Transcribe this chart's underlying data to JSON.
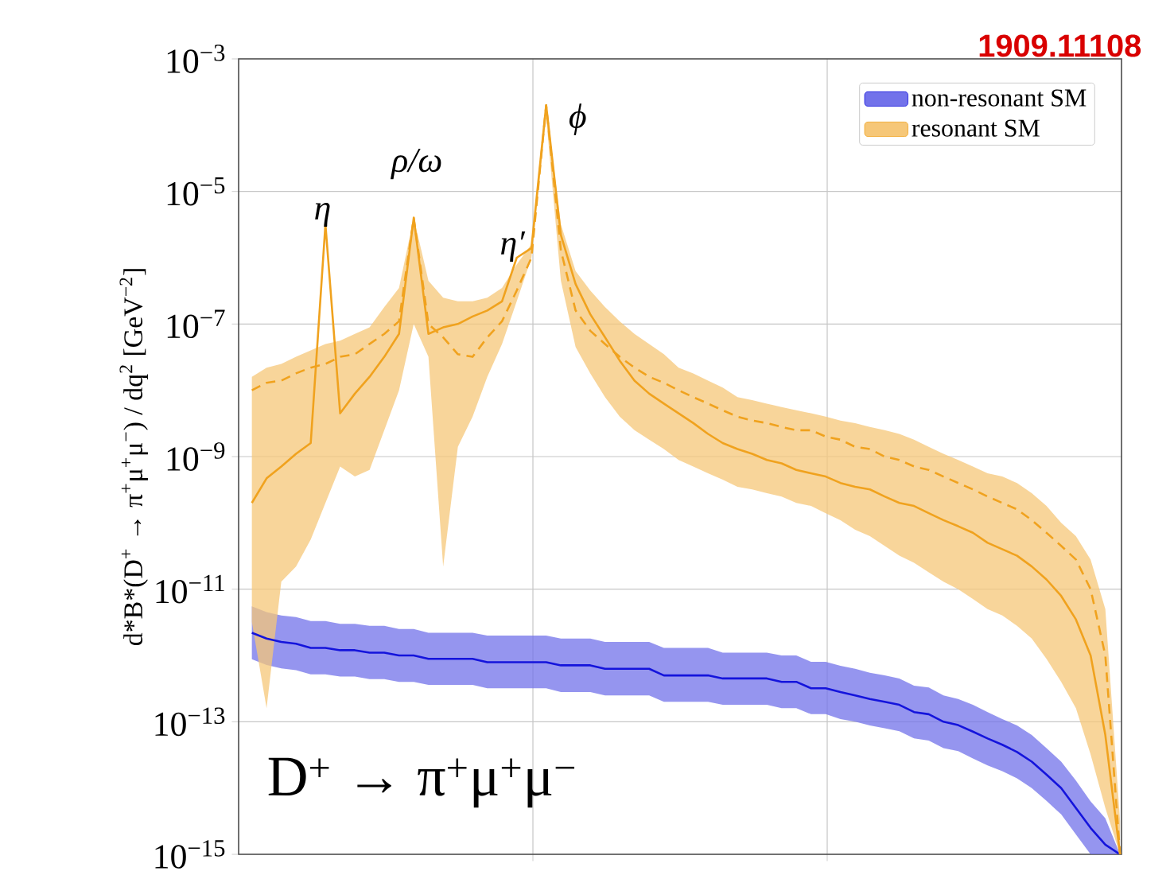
{
  "chart_data": {
    "type": "line",
    "ylabel": "d*B*(D$^{+}$ → π$^{+}$μ$^{+}$μ$^{−}$) / dq$^{2}$ [GeV$^{−2}$]",
    "categories": [
      null,
      null,
      null,
      null,
      null,
      null,
      null,
      null,
      null,
      null,
      null,
      null,
      null,
      null,
      null,
      null,
      null,
      null,
      null,
      null,
      null,
      null,
      null,
      null,
      null,
      null,
      null,
      null,
      null,
      null,
      null,
      null,
      null,
      null,
      null,
      null,
      null,
      null,
      null,
      null,
      null,
      null,
      null,
      null,
      null,
      null,
      null,
      null,
      null,
      null,
      null,
      null,
      null,
      null,
      null,
      null,
      null,
      null,
      null,
      null
    ],
    "ylim": [
      1e-15,
      0.001
    ],
    "yticks": [
      {
        "value": 1e-15,
        "label": "10$^{−15}$"
      },
      {
        "value": 1e-13,
        "label": "10$^{−13}$"
      },
      {
        "value": 1e-11,
        "label": "10$^{−11}$"
      },
      {
        "value": 1e-09,
        "label": "10$^{−9}$"
      },
      {
        "value": 1e-07,
        "label": "10$^{−7}$"
      },
      {
        "value": 1e-05,
        "label": "10$^{−5}$"
      },
      {
        "value": 0.001,
        "label": "10$^{−3}$"
      }
    ],
    "log": "y",
    "grid": true,
    "legend": "top right",
    "tick_labels": "y",
    "series": [
      {
        "name": "non-resonant SM",
        "color": "#1414dc",
        "values": [
          2.2e-12,
          1.8e-12,
          1.6e-12,
          1.5e-12,
          1.3e-12,
          1.3e-12,
          1.2e-12,
          1.2e-12,
          1.1e-12,
          1.1e-12,
          1e-12,
          1e-12,
          8.9e-13,
          8.9e-13,
          8.9e-13,
          8.9e-13,
          7.9e-13,
          7.9e-13,
          7.9e-13,
          7.9e-13,
          7.9e-13,
          7.1e-13,
          7.1e-13,
          7.1e-13,
          6.3e-13,
          6.3e-13,
          6.3e-13,
          6.3e-13,
          5e-13,
          5e-13,
          5e-13,
          5e-13,
          4.5e-13,
          4.5e-13,
          4.5e-13,
          4.5e-13,
          4e-13,
          4e-13,
          3.2e-13,
          3.2e-13,
          2.8e-13,
          2.5e-13,
          2.2e-13,
          2e-13,
          1.8e-13,
          1.4e-13,
          1.3e-13,
          1e-13,
          8.9e-14,
          7.1e-14,
          5.6e-14,
          4.5e-14,
          3.5e-14,
          2.5e-14,
          1.6e-14,
          1e-14,
          5e-15,
          2.5e-15,
          1.4e-15,
          1e-15
        ],
        "upper": [
          5.5e-12,
          4.5e-12,
          4e-12,
          3.8e-12,
          3.3e-12,
          3.3e-12,
          3e-12,
          3e-12,
          2.8e-12,
          2.8e-12,
          2.5e-12,
          2.5e-12,
          2.2e-12,
          2.2e-12,
          2.2e-12,
          2.2e-12,
          2e-12,
          2e-12,
          2e-12,
          2e-12,
          2e-12,
          1.8e-12,
          1.8e-12,
          1.8e-12,
          1.6e-12,
          1.6e-12,
          1.6e-12,
          1.6e-12,
          1.3e-12,
          1.3e-12,
          1.3e-12,
          1.3e-12,
          1.1e-12,
          1.1e-12,
          1.1e-12,
          1.1e-12,
          1e-12,
          1e-12,
          8e-13,
          8e-13,
          7e-13,
          6.3e-13,
          5.5e-13,
          5e-13,
          4.5e-13,
          3.5e-13,
          3.3e-13,
          2.5e-13,
          2.2e-13,
          1.8e-13,
          1.4e-13,
          1.1e-13,
          8.8e-14,
          6.3e-14,
          4e-14,
          2.5e-14,
          1.3e-14,
          6.3e-15,
          3.5e-15,
          1e-15
        ],
        "lower": [
          8.8e-13,
          7.2e-13,
          6.4e-13,
          6e-13,
          5.2e-13,
          5.2e-13,
          4.8e-13,
          4.8e-13,
          4.4e-13,
          4.4e-13,
          4e-13,
          4e-13,
          3.6e-13,
          3.6e-13,
          3.6e-13,
          3.6e-13,
          3.2e-13,
          3.2e-13,
          3.2e-13,
          3.2e-13,
          3.2e-13,
          2.8e-13,
          2.8e-13,
          2.8e-13,
          2.5e-13,
          2.5e-13,
          2.5e-13,
          2.5e-13,
          2e-13,
          2e-13,
          2e-13,
          2e-13,
          1.8e-13,
          1.8e-13,
          1.8e-13,
          1.8e-13,
          1.6e-13,
          1.6e-13,
          1.3e-13,
          1.3e-13,
          1.1e-13,
          1e-13,
          8.8e-14,
          8e-14,
          7.2e-14,
          5.6e-14,
          5.2e-14,
          4e-14,
          3.6e-14,
          2.8e-14,
          2.2e-14,
          1.8e-14,
          1.4e-14,
          1e-14,
          6.4e-15,
          4e-15,
          2e-15,
          1e-15,
          1e-15,
          1e-15
        ]
      },
      {
        "name": "resonant SM",
        "color": "#f0a21e",
        "values": [
          2e-10,
          4.7e-10,
          7.1e-10,
          1.1e-09,
          1.6e-09,
          3.2e-06,
          4.5e-09,
          8.9e-09,
          1.6e-08,
          3.2e-08,
          7.1e-08,
          4e-06,
          7.1e-08,
          8.9e-08,
          1e-07,
          1.3e-07,
          1.6e-07,
          2.2e-07,
          1e-06,
          1.4e-06,
          0.0002,
          2.2e-06,
          4e-07,
          1.4e-07,
          6.3e-08,
          2.8e-08,
          1.4e-08,
          8.9e-09,
          6.3e-09,
          4.5e-09,
          3.2e-09,
          2.2e-09,
          1.6e-09,
          1.3e-09,
          1.1e-09,
          8.9e-10,
          7.9e-10,
          6.3e-10,
          5.6e-10,
          5e-10,
          4e-10,
          3.5e-10,
          3.2e-10,
          2.5e-10,
          2e-10,
          1.8e-10,
          1.4e-10,
          1.1e-10,
          8.9e-11,
          7.1e-11,
          5e-11,
          4e-11,
          3.2e-11,
          2.2e-11,
          1.4e-11,
          7.9e-12,
          3.5e-12,
          1e-12,
          6.3e-14,
          1e-15
        ],
        "upper": [
          1.6e-08,
          2.2e-08,
          2.5e-08,
          3.2e-08,
          4e-08,
          5e-08,
          5.6e-08,
          7.1e-08,
          8.9e-08,
          1.8e-07,
          3.5e-07,
          4e-06,
          4.5e-07,
          2.5e-07,
          2.2e-07,
          2.2e-07,
          2.5e-07,
          3.5e-07,
          7.9e-07,
          1.6e-06,
          0.0002,
          3.2e-06,
          6.3e-07,
          3.2e-07,
          1.8e-07,
          1.1e-07,
          7.1e-08,
          5e-08,
          3.5e-08,
          2.2e-08,
          1.8e-08,
          1.4e-08,
          1.1e-08,
          7.9e-09,
          7.1e-09,
          6.3e-09,
          5.6e-09,
          5e-09,
          4.5e-09,
          4e-09,
          3.5e-09,
          3.2e-09,
          2.8e-09,
          2.5e-09,
          2.2e-09,
          1.8e-09,
          1.4e-09,
          1.1e-09,
          8.9e-10,
          7.1e-10,
          5.6e-10,
          5e-10,
          4e-10,
          2.8e-10,
          1.8e-10,
          1e-10,
          6.3e-11,
          2.8e-11,
          5e-12,
          3.2e-15
        ],
        "lower": [
          3.2e-12,
          1.6e-13,
          1.3e-11,
          2.2e-11,
          5.6e-11,
          2e-10,
          7.1e-10,
          5e-10,
          6.3e-10,
          2.5e-09,
          1e-08,
          1e-07,
          3.2e-08,
          2.2e-11,
          1.4e-09,
          4e-09,
          1.6e-08,
          5e-08,
          2.2e-07,
          1e-06,
          0.00013,
          4.5e-07,
          4.5e-08,
          1.8e-08,
          7.9e-09,
          4e-09,
          2.5e-09,
          1.8e-09,
          1.3e-09,
          8.9e-10,
          7.1e-10,
          5.6e-10,
          4.5e-10,
          3.5e-10,
          3.2e-10,
          2.8e-10,
          2.5e-10,
          2e-10,
          1.8e-10,
          1.4e-10,
          1.1e-10,
          7.9e-11,
          6.3e-11,
          4.5e-11,
          3.2e-11,
          2.5e-11,
          1.8e-11,
          1.3e-11,
          1e-11,
          7.1e-12,
          5e-12,
          4e-12,
          2.8e-12,
          1.8e-12,
          8.9e-13,
          4e-13,
          1.6e-13,
          3.2e-14,
          5e-15,
          1e-15
        ]
      },
      {
        "color": "#f0a21e",
        "line_style": "dashed",
        "values": [
          1e-08,
          1.3e-08,
          1.4e-08,
          1.8e-08,
          2.2e-08,
          2.5e-08,
          3.2e-08,
          3.5e-08,
          5e-08,
          7.1e-08,
          1.1e-07,
          4e-06,
          1e-07,
          6.3e-08,
          3.5e-08,
          3.2e-08,
          6.3e-08,
          1.1e-07,
          3.2e-07,
          1e-06,
          0.0002,
          1.3e-06,
          1.6e-07,
          7.9e-08,
          5e-08,
          3.2e-08,
          2.2e-08,
          1.6e-08,
          1.3e-08,
          1e-08,
          7.9e-09,
          6.3e-09,
          5e-09,
          4e-09,
          3.5e-09,
          3.2e-09,
          2.8e-09,
          2.5e-09,
          2.5e-09,
          2e-09,
          1.8e-09,
          1.4e-09,
          1.3e-09,
          1e-09,
          8.9e-10,
          7.1e-10,
          6.3e-10,
          5e-10,
          4e-10,
          3.2e-10,
          2.5e-10,
          2e-10,
          1.6e-10,
          1.1e-10,
          7.1e-11,
          4.5e-11,
          2.8e-11,
          1e-11,
          1e-12,
          1e-15
        ]
      }
    ],
    "annotations": [
      "η",
      "ρ/ω",
      "η′",
      "ϕ",
      "D$^{+}$ → π$^{+}$μ$^{+}$μ$^{−}$",
      "1909.11108"
    ]
  }
}
